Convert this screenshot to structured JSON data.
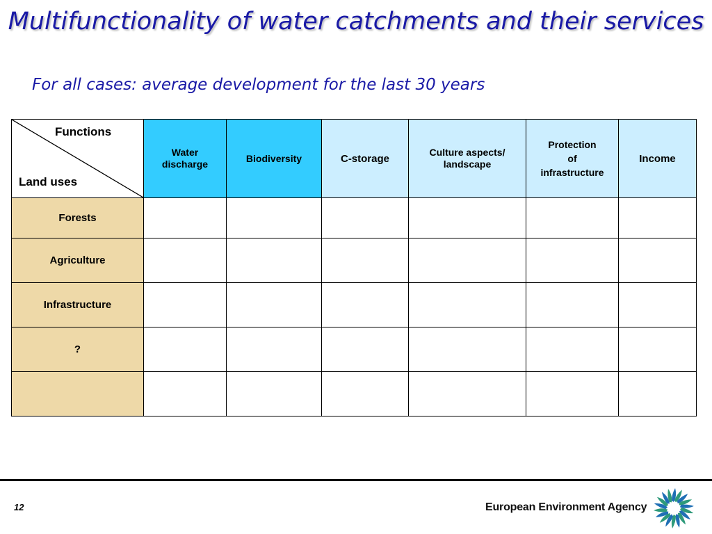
{
  "slide": {
    "title": "Multifunctionality of water catchments and their services",
    "subtitle": "For all cases: average development for the last 30 years"
  },
  "table": {
    "corner": {
      "top_label": "Functions",
      "bottom_label": "Land uses"
    },
    "functions": [
      {
        "label": "Water\ndischarge",
        "style": "strong"
      },
      {
        "label": "Biodiversity",
        "style": "strong"
      },
      {
        "label": "C-storage",
        "style": "light"
      },
      {
        "label": "Culture aspects/\nlandscape",
        "style": "light"
      },
      {
        "label": "Protection\nof\ninfrastructure",
        "style": "light"
      },
      {
        "label": "Income",
        "style": "light"
      }
    ],
    "land_uses": [
      "Forests",
      "Agriculture",
      "Infrastructure",
      "?",
      ""
    ]
  },
  "footer": {
    "page_number": "12",
    "agency": "European Environment Agency",
    "logo_icon": "eea-logo-icon"
  },
  "colors": {
    "title": "#1a1aa6",
    "header_strong": "#33ccff",
    "header_light": "#cceeff",
    "land_use_fill": "#eed9a8",
    "logo_blue": "#1f6fb5",
    "logo_green": "#2e9a7a"
  }
}
